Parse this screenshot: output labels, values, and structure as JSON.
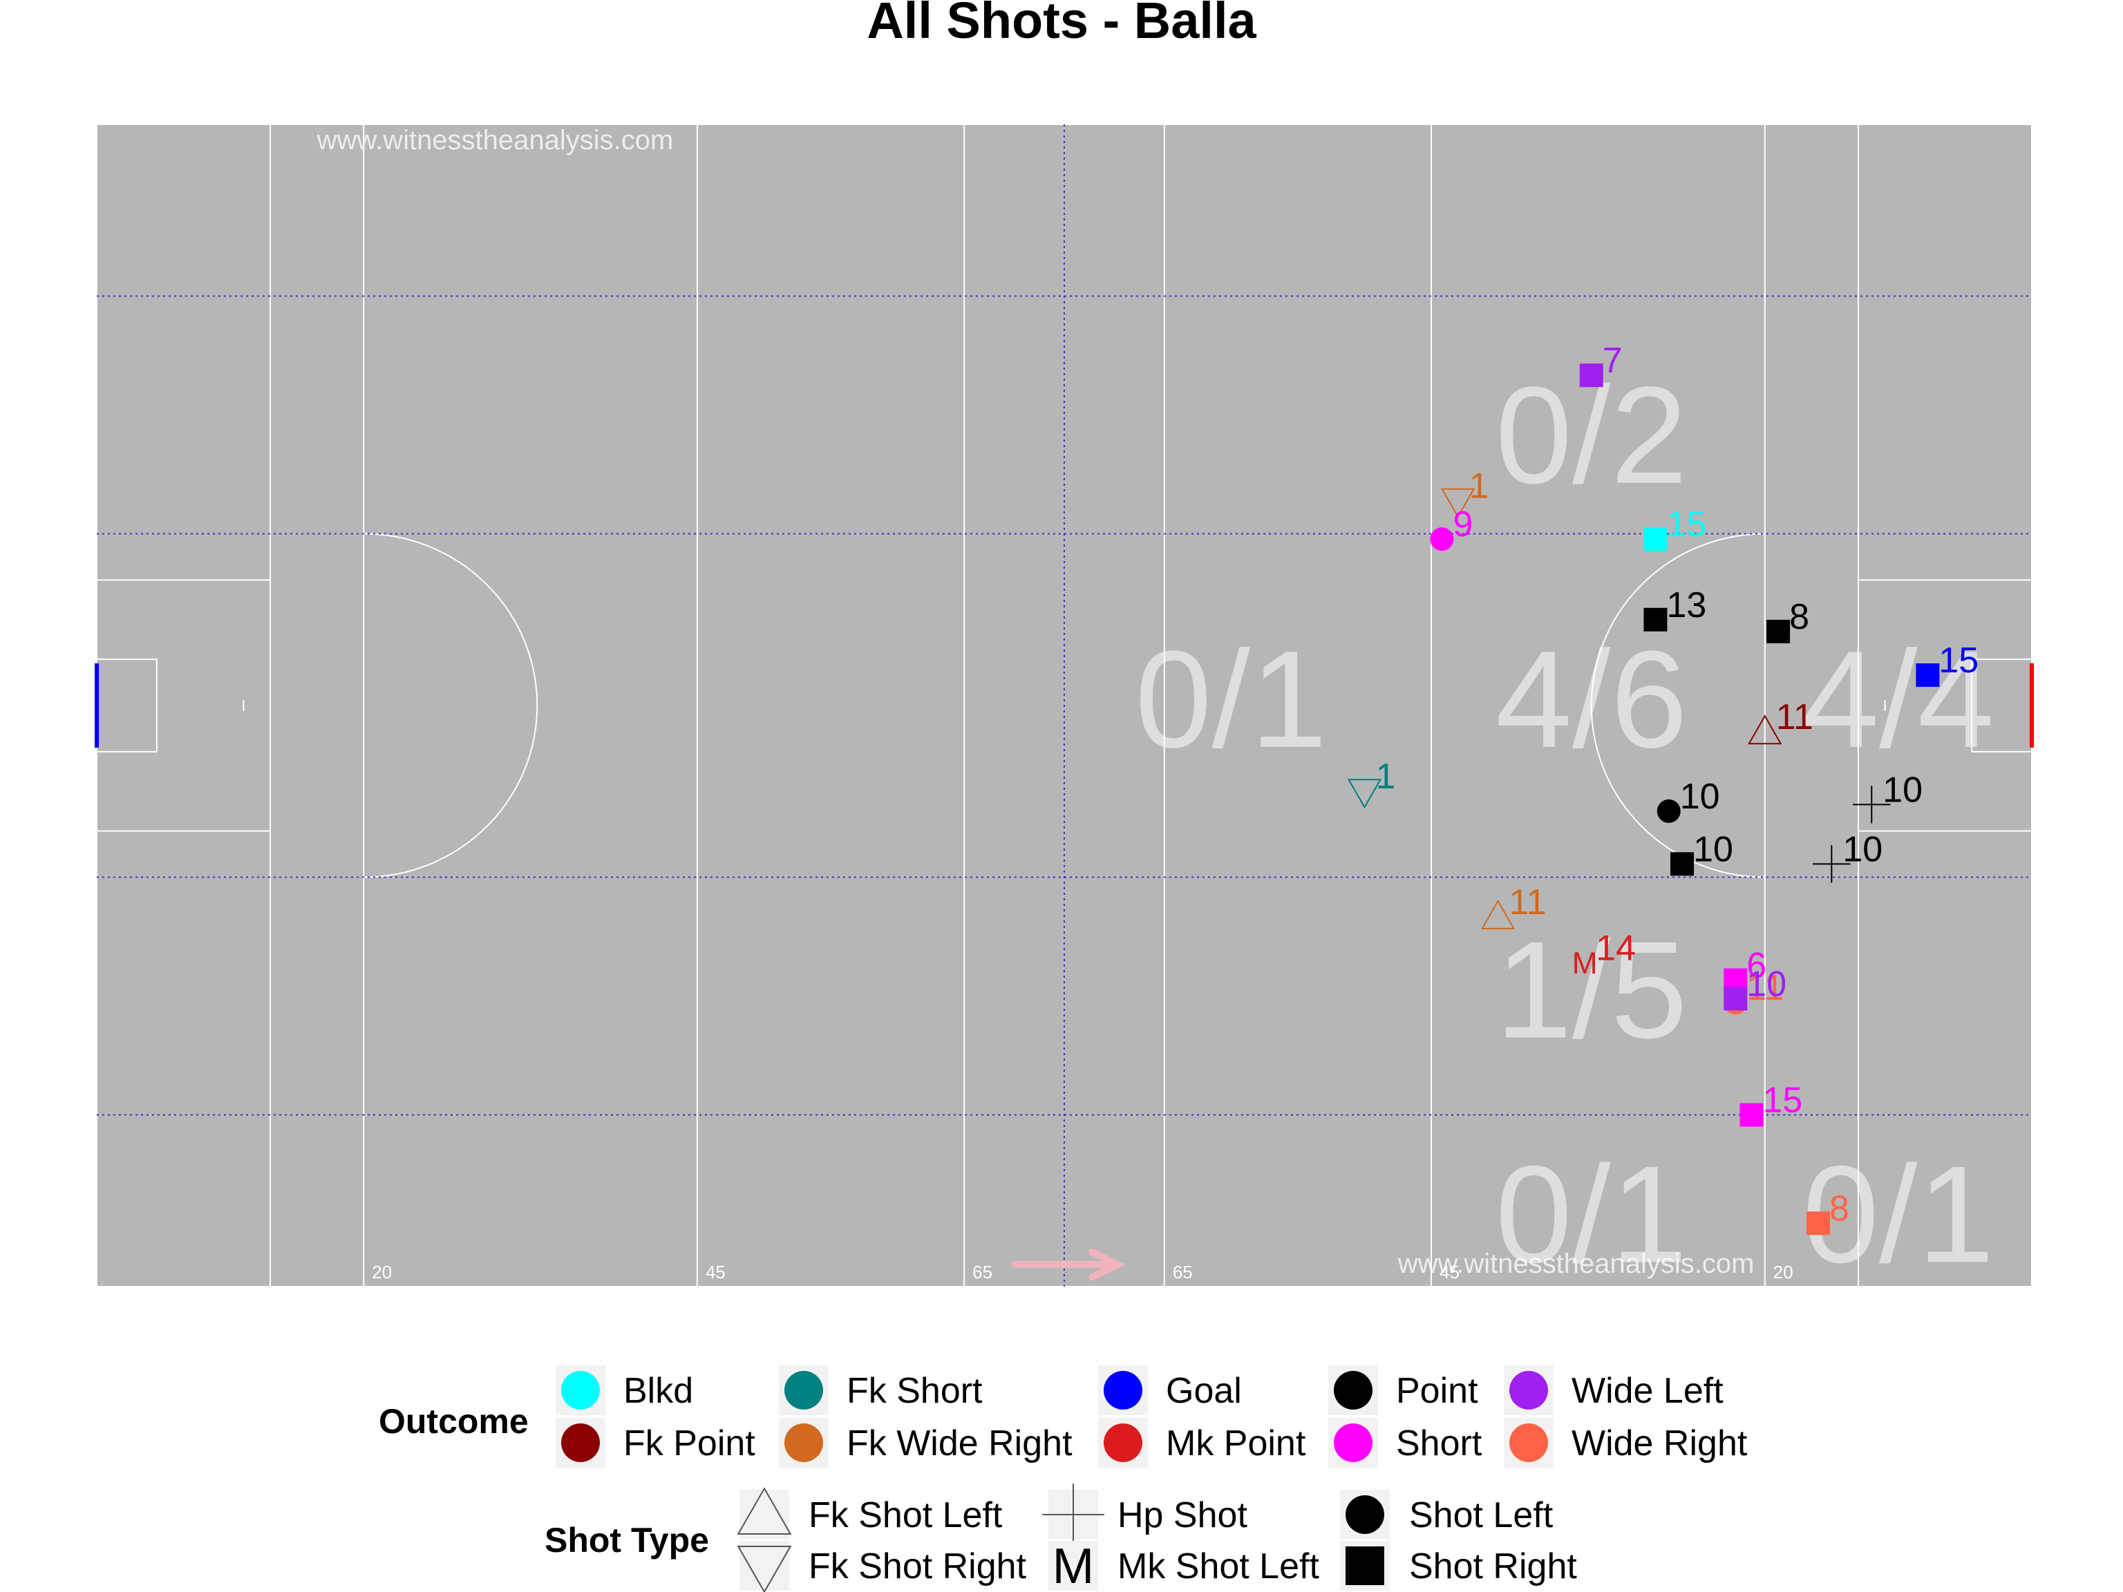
{
  "chart_data": {
    "type": "scatter",
    "title": "All Shots - Balla",
    "watermark": "www.witnesstheanalysis.com",
    "direction_arrow_color": "#f2b3bd",
    "pitch": {
      "background": "#b6b6b6",
      "line_color": "#ffffff",
      "zone_line_color": "#3333cc",
      "left_goal_color": "#0000ff",
      "right_goal_color": "#ff0000",
      "x_range": [
        0,
        145
      ],
      "y_range": [
        0,
        88
      ],
      "markings_x": [
        0,
        13,
        20,
        45,
        65,
        80,
        100,
        125,
        132,
        145
      ],
      "distance_labels": [
        {
          "x": 20,
          "text": "20"
        },
        {
          "x": 45,
          "text": "45"
        },
        {
          "x": 65,
          "text": "65"
        },
        {
          "x": 80,
          "text": "65"
        },
        {
          "x": 100,
          "text": "45"
        },
        {
          "x": 125,
          "text": "20"
        }
      ],
      "zone_lines_x": [
        72.5
      ],
      "zone_lines_y": [
        75,
        57,
        31,
        13
      ]
    },
    "zone_stats": [
      {
        "label": "0/2",
        "x": 112,
        "y": 64
      },
      {
        "label": "0/1",
        "x": 85,
        "y": 44
      },
      {
        "label": "4/6",
        "x": 112,
        "y": 44
      },
      {
        "label": "4/4",
        "x": 135,
        "y": 44
      },
      {
        "label": "1/5",
        "x": 112,
        "y": 22
      },
      {
        "label": "0/1",
        "x": 112,
        "y": 5
      },
      {
        "label": "0/1",
        "x": 135,
        "y": 5
      }
    ],
    "outcome_colors": {
      "Blkd": "#00ffff",
      "Fk Point": "#8b0000",
      "Fk Short": "#008080",
      "Fk Wide Right": "#d2691e",
      "Goal": "#0000ff",
      "Mk Point": "#dc1c1c",
      "Point": "#000000",
      "Short": "#ff00ff",
      "Wide Left": "#a020f0",
      "Wide Right": "#ff6347"
    },
    "shots": [
      {
        "x": 112,
        "y": 69,
        "outcome": "Wide Left",
        "type": "Shot Right",
        "player": "7"
      },
      {
        "x": 102,
        "y": 59.5,
        "outcome": "Fk Wide Right",
        "type": "Fk Shot Right",
        "player": "1"
      },
      {
        "x": 100.8,
        "y": 56.6,
        "outcome": "Short",
        "type": "Shot Left",
        "player": "9"
      },
      {
        "x": 116.8,
        "y": 56.6,
        "outcome": "Blkd",
        "type": "Shot Right",
        "player": "15"
      },
      {
        "x": 116.8,
        "y": 50.5,
        "outcome": "Point",
        "type": "Shot Right",
        "player": "13"
      },
      {
        "x": 126,
        "y": 49.6,
        "outcome": "Point",
        "type": "Shot Right",
        "player": "8"
      },
      {
        "x": 137.2,
        "y": 46.3,
        "outcome": "Goal",
        "type": "Shot Right",
        "player": "15"
      },
      {
        "x": 125,
        "y": 42,
        "outcome": "Fk Point",
        "type": "Fk Shot Left",
        "player": "11"
      },
      {
        "x": 95,
        "y": 37.5,
        "outcome": "Fk Short",
        "type": "Fk Shot Right",
        "player": "1"
      },
      {
        "x": 117.8,
        "y": 36,
        "outcome": "Point",
        "type": "Shot Left",
        "player": "10"
      },
      {
        "x": 133,
        "y": 36.5,
        "outcome": "Point",
        "type": "Hp Shot",
        "player": "10"
      },
      {
        "x": 118.8,
        "y": 32,
        "outcome": "Point",
        "type": "Shot Right",
        "player": "10"
      },
      {
        "x": 130,
        "y": 32,
        "outcome": "Point",
        "type": "Hp Shot",
        "player": "10"
      },
      {
        "x": 105,
        "y": 28,
        "outcome": "Fk Wide Right",
        "type": "Fk Shot Left",
        "player": "11"
      },
      {
        "x": 111.5,
        "y": 24.5,
        "outcome": "Mk Point",
        "type": "Mk Shot Left",
        "player": "14"
      },
      {
        "x": 122.8,
        "y": 23.2,
        "outcome": "Short",
        "type": "Shot Right",
        "player": "6"
      },
      {
        "x": 122.8,
        "y": 21.5,
        "outcome": "Wide Right",
        "type": "Shot Left",
        "player": "11"
      },
      {
        "x": 122.8,
        "y": 21.8,
        "outcome": "Wide Left",
        "type": "Shot Right",
        "player": "10"
      },
      {
        "x": 124,
        "y": 13,
        "outcome": "Short",
        "type": "Shot Right",
        "player": "15"
      },
      {
        "x": 129,
        "y": 4.8,
        "outcome": "Wide Right",
        "type": "Shot Right",
        "player": "8"
      }
    ],
    "legend": {
      "outcome_title": "Outcome",
      "outcome_items": [
        {
          "label": "Blkd",
          "color": "#00ffff"
        },
        {
          "label": "Fk Point",
          "color": "#8b0000"
        },
        {
          "label": "Fk Short",
          "color": "#008080"
        },
        {
          "label": "Fk Wide Right",
          "color": "#d2691e"
        },
        {
          "label": "Goal",
          "color": "#0000ff"
        },
        {
          "label": "Mk Point",
          "color": "#dc1c1c"
        },
        {
          "label": "Point",
          "color": "#000000"
        },
        {
          "label": "Short",
          "color": "#ff00ff"
        },
        {
          "label": "Wide Left",
          "color": "#a020f0"
        },
        {
          "label": "Wide Right",
          "color": "#ff6347"
        }
      ],
      "shot_type_title": "Shot Type",
      "shot_type_items": [
        {
          "label": "Fk Shot Left",
          "symbol": "triangle-up-icon"
        },
        {
          "label": "Fk Shot Right",
          "symbol": "triangle-down-icon"
        },
        {
          "label": "Hp Shot",
          "symbol": "plus-icon"
        },
        {
          "label": "Mk Shot Left",
          "symbol": "letter-m-icon",
          "glyph": "M"
        },
        {
          "label": "Shot Left",
          "symbol": "circle-icon"
        },
        {
          "label": "Shot Right",
          "symbol": "square-icon"
        }
      ]
    }
  }
}
